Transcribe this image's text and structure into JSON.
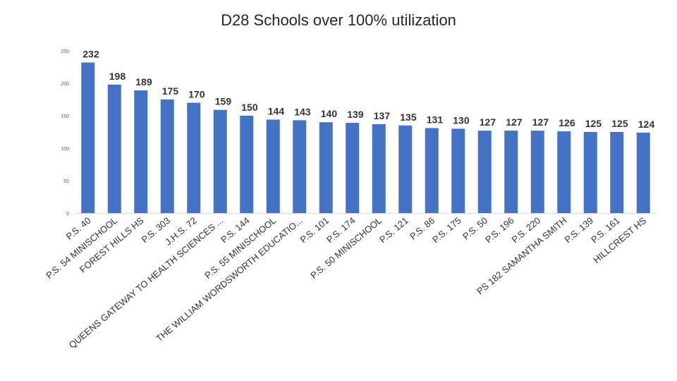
{
  "chart_data": {
    "type": "bar",
    "title": "D28 Schools over 100% utilization",
    "xlabel": "",
    "ylabel": "",
    "ylim": [
      0,
      250
    ],
    "yticks": [
      0,
      50,
      100,
      150,
      200,
      250
    ],
    "grid": false,
    "legend": "none",
    "bar_color": "#4472C4",
    "categories": [
      "P.S. 40",
      "P.S. 54 MINISCHOOL",
      "FOREST HILLS HS",
      "P.S. 303",
      "J.H.S. 72",
      "QUEENS GATEWAY TO HEALTH SCIENCES ...",
      "P.S. 144",
      "P.S. 55 MINISCHOOL",
      "THE WILLIAM WORDSWORTH EDUCATIO...",
      "P.S. 101",
      "P.S. 174",
      "P.S. 50 MINISCHOOL",
      "P.S. 121",
      "P.S. 86",
      "P.S. 175",
      "P.S. 50",
      "P.S. 196",
      "P.S. 220",
      "PS 182 SAMANTHA SMITH",
      "P.S. 139",
      "P.S. 161",
      "HILLCREST HS"
    ],
    "values": [
      232,
      198,
      189,
      175,
      170,
      159,
      150,
      144,
      143,
      140,
      139,
      137,
      135,
      131,
      130,
      127,
      127,
      127,
      126,
      125,
      125,
      124
    ]
  }
}
